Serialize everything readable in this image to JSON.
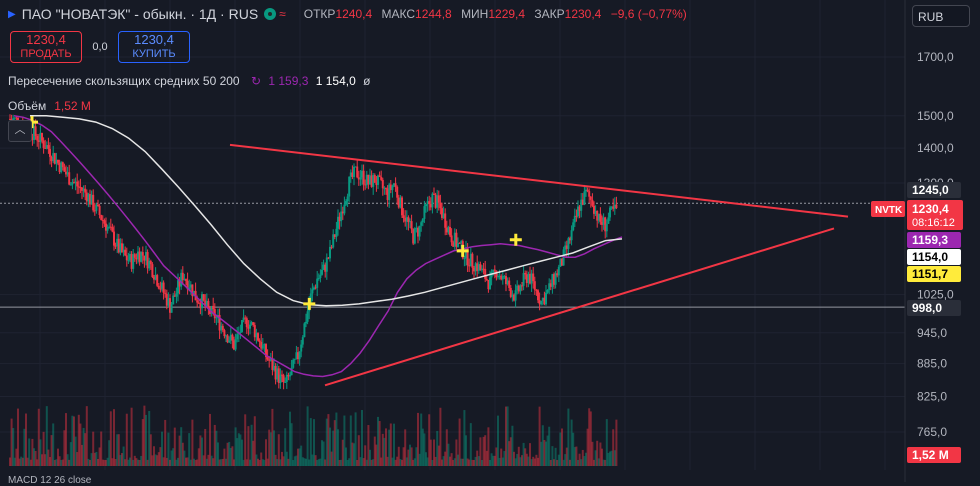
{
  "header": {
    "title": "ПАО \"НОВАТЭК\" - обыкн. · 1Д · RUS",
    "ohlc": [
      {
        "label": "ОТКР",
        "value": "1240,4"
      },
      {
        "label": "МАКС",
        "value": "1244,8"
      },
      {
        "label": "МИН",
        "value": "1229,4"
      },
      {
        "label": "ЗАКР",
        "value": "1230,4"
      }
    ],
    "change": "−9,6 (−0,77%)",
    "market_icon": "wave-icon"
  },
  "trade": {
    "sell_price": "1230,4",
    "sell_label": "ПРОДАТЬ",
    "spread": "0,0",
    "buy_price": "1230,4",
    "buy_label": "КУПИТЬ"
  },
  "indicator": {
    "name": "Пересечение скользящих средних 50 200",
    "value1": "1 159,3",
    "value2": "1 154,0",
    "icon": "cycle-icon",
    "hidden_icon": "eye-off-icon"
  },
  "volume": {
    "label": "Объём",
    "value": "1,52 M"
  },
  "currency": "RUB",
  "macd": "MACD 12 26 close",
  "colors": {
    "background": "#161a25",
    "up": "#089981",
    "down": "#f23645",
    "ma50": "#9c27b0",
    "ma200": "#e6e6e6",
    "trend": "#f23645",
    "cross": "#ffeb3b"
  },
  "chart_data": {
    "type": "candlestick",
    "scale": "log",
    "y_ticks": [
      "1700,0",
      "1500,0",
      "1400,0",
      "1300,0",
      "1025,0",
      "945,0",
      "885,0",
      "825,0",
      "765,0"
    ],
    "price_labels": [
      {
        "value": "1245,0",
        "kind": "high-line"
      },
      {
        "value": "1230,4",
        "kind": "last",
        "ticker": "NVTK",
        "countdown": "08:16:12"
      },
      {
        "value": "1159,3",
        "kind": "ma50"
      },
      {
        "value": "1154,0",
        "kind": "ma200"
      },
      {
        "value": "1151,7",
        "kind": "marker"
      },
      {
        "value": "998,0",
        "kind": "support-line"
      },
      {
        "value": "1,52 M",
        "kind": "volume"
      }
    ],
    "horizontal_lines": [
      1245,
      998
    ],
    "trend_lines": [
      {
        "name": "upper",
        "from": [
          0.0,
          1410
        ],
        "to": [
          1.0,
          1210
        ]
      },
      {
        "name": "lower",
        "from": [
          0.22,
          845
        ],
        "to": [
          1.0,
          1180
        ]
      }
    ],
    "cross_markers": [
      {
        "x": 0.0,
        "price": 1480
      },
      {
        "x": 0.47,
        "price": 1005
      },
      {
        "x": 0.73,
        "price": 1125
      },
      {
        "x": 0.82,
        "price": 1152
      }
    ],
    "closes": [
      1490,
      1485,
      1470,
      1455,
      1440,
      1420,
      1400,
      1370,
      1345,
      1320,
      1300,
      1285,
      1270,
      1240,
      1215,
      1190,
      1160,
      1130,
      1110,
      1100,
      1120,
      1115,
      1090,
      1060,
      1030,
      1000,
      1030,
      1070,
      1050,
      1020,
      1010,
      990,
      980,
      960,
      940,
      920,
      950,
      970,
      955,
      930,
      900,
      880,
      860,
      845,
      870,
      900,
      960,
      1020,
      1060,
      1080,
      1120,
      1180,
      1240,
      1300,
      1330,
      1320,
      1300,
      1310,
      1290,
      1270,
      1300,
      1240,
      1200,
      1160,
      1180,
      1230,
      1260,
      1240,
      1200,
      1160,
      1140,
      1120,
      1100,
      1090,
      1070,
      1050,
      1080,
      1060,
      1040,
      1020,
      1050,
      1070,
      1040,
      1010,
      1030,
      1060,
      1090,
      1130,
      1180,
      1240,
      1270,
      1250,
      1200,
      1190,
      1220,
      1231
    ],
    "ma50": [
      1500,
      1495,
      1485,
      1470,
      1450,
      1420,
      1390,
      1360,
      1330,
      1300,
      1270,
      1240,
      1210,
      1180,
      1150,
      1120,
      1090,
      1070,
      1050,
      1030,
      1010,
      990,
      975,
      960,
      945,
      930,
      915,
      900,
      890,
      880,
      870,
      865,
      862,
      861,
      864,
      870,
      885,
      905,
      930,
      960,
      990,
      1030,
      1060,
      1080,
      1095,
      1105,
      1115,
      1125,
      1130,
      1135,
      1138,
      1140,
      1142,
      1140,
      1138,
      1133,
      1128,
      1122,
      1116,
      1110,
      1110,
      1118,
      1130,
      1140,
      1150,
      1159
    ],
    "ma200": [
      1500,
      1500,
      1495,
      1490,
      1480,
      1460,
      1430,
      1390,
      1340,
      1290,
      1240,
      1190,
      1140,
      1095,
      1060,
      1030,
      1012,
      1003,
      1001,
      1002,
      1005,
      1010,
      1015,
      1022,
      1030,
      1040,
      1050,
      1060,
      1070,
      1080,
      1090,
      1100,
      1110,
      1120,
      1135,
      1150,
      1154
    ],
    "volume_max": "1,52 M"
  }
}
